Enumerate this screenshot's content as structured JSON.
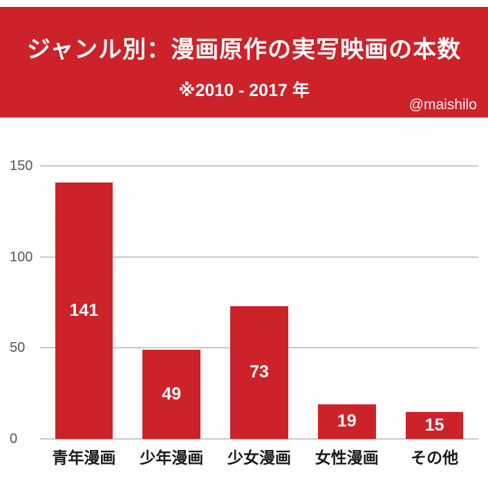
{
  "header": {
    "title": "ジャンル別：漫画原作の実写映画の本数",
    "subtitle": "※2010 - 2017 年",
    "credit": "@maishilo"
  },
  "chart_data": {
    "type": "bar",
    "categories": [
      "青年漫画",
      "少年漫画",
      "少女漫画",
      "女性漫画",
      "その他"
    ],
    "values": [
      141,
      49,
      73,
      19,
      15
    ],
    "title": "ジャンル別：漫画原作の実写映画の本数",
    "subtitle": "※2010 - 2017 年",
    "xlabel": "",
    "ylabel": "",
    "ylim": [
      0,
      150
    ],
    "yticks": [
      0,
      50,
      100,
      150
    ],
    "grid": true,
    "legend": "none",
    "bar_color": "#cc2229",
    "value_label_color": "#ffffff"
  },
  "colors": {
    "banner": "#cc2229",
    "bar": "#cc2229",
    "gridline": "#c9c9c9",
    "axis_text": "#555555"
  }
}
